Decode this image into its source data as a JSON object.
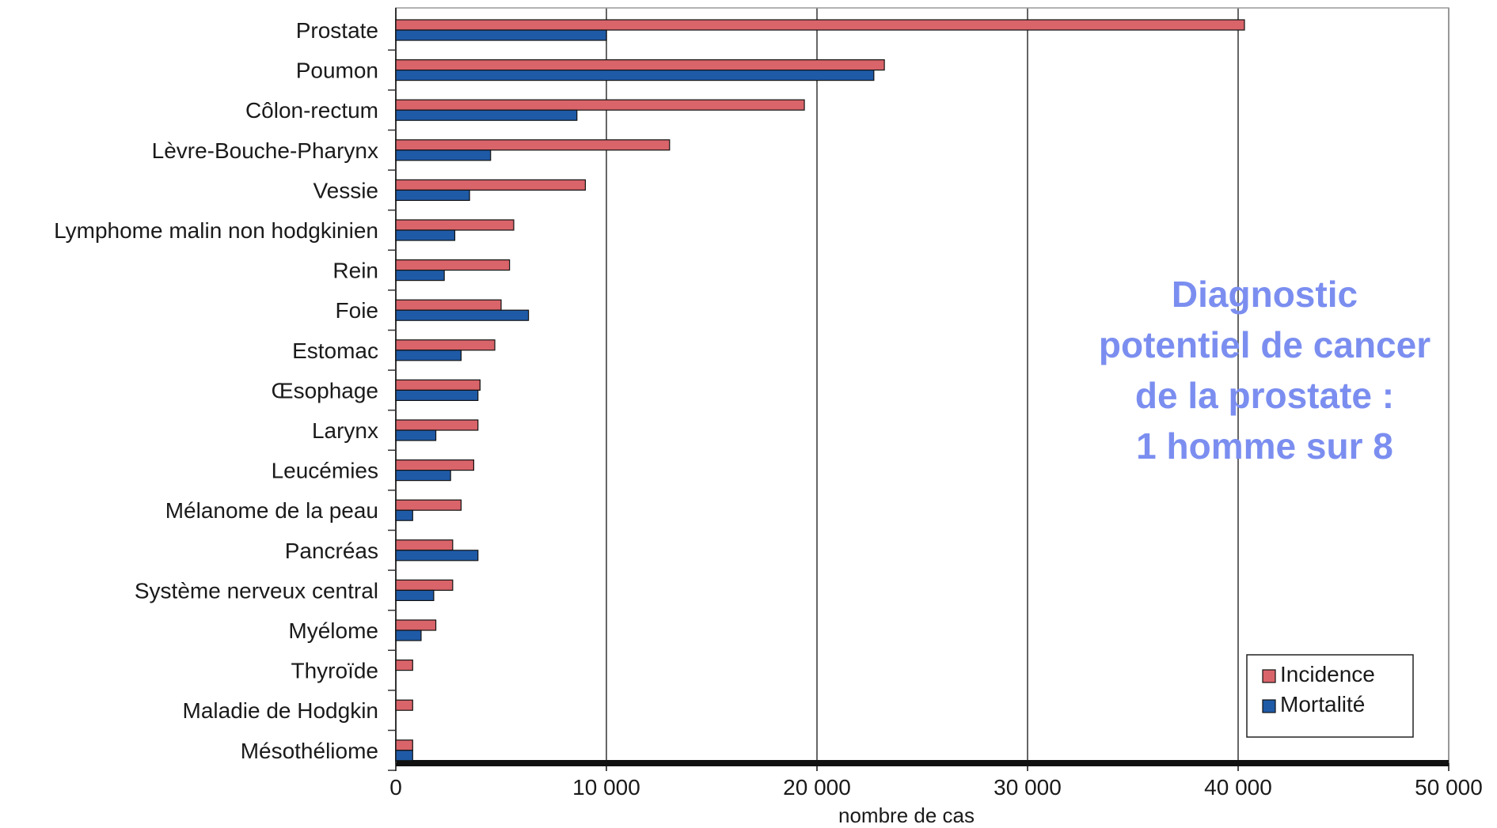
{
  "chart_data": {
    "type": "bar",
    "orientation": "horizontal",
    "categories": [
      "Prostate",
      "Poumon",
      "Côlon-rectum",
      "Lèvre-Bouche-Pharynx",
      "Vessie",
      "Lymphome malin non hodgkinien",
      "Rein",
      "Foie",
      "Estomac",
      "Œsophage",
      "Larynx",
      "Leucémies",
      "Mélanome de la peau",
      "Pancréas",
      "Système nerveux central",
      "Myélome",
      "Thyroïde",
      "Maladie de Hodgkin",
      "Mésothéliome"
    ],
    "series": [
      {
        "name": "Incidence",
        "color": "#d9646a",
        "values": [
          40300,
          23200,
          19400,
          13000,
          9000,
          5600,
          5400,
          5000,
          4700,
          4000,
          3900,
          3700,
          3100,
          2700,
          2700,
          1900,
          800,
          800,
          800
        ]
      },
      {
        "name": "Mortalité",
        "color": "#1f5aa6",
        "values": [
          10000,
          22700,
          8600,
          4500,
          3500,
          2800,
          2300,
          6300,
          3100,
          3900,
          1900,
          2600,
          800,
          3900,
          1800,
          1200,
          0,
          0,
          800
        ]
      }
    ],
    "xlabel": "nombre de cas",
    "xlim": [
      0,
      50000
    ],
    "xticks": [
      0,
      10000,
      20000,
      30000,
      40000,
      50000
    ],
    "xtick_labels": [
      "0",
      "10 000",
      "20 000",
      "30 000",
      "40 000",
      "50 000"
    ],
    "grid": "vertical",
    "legend_position": "bottom-right",
    "annotation_lines": [
      "Diagnostic",
      "potentiel de cancer",
      "de la prostate :",
      "1 homme sur 8"
    ],
    "annotation_color": "#7b8ef0"
  }
}
